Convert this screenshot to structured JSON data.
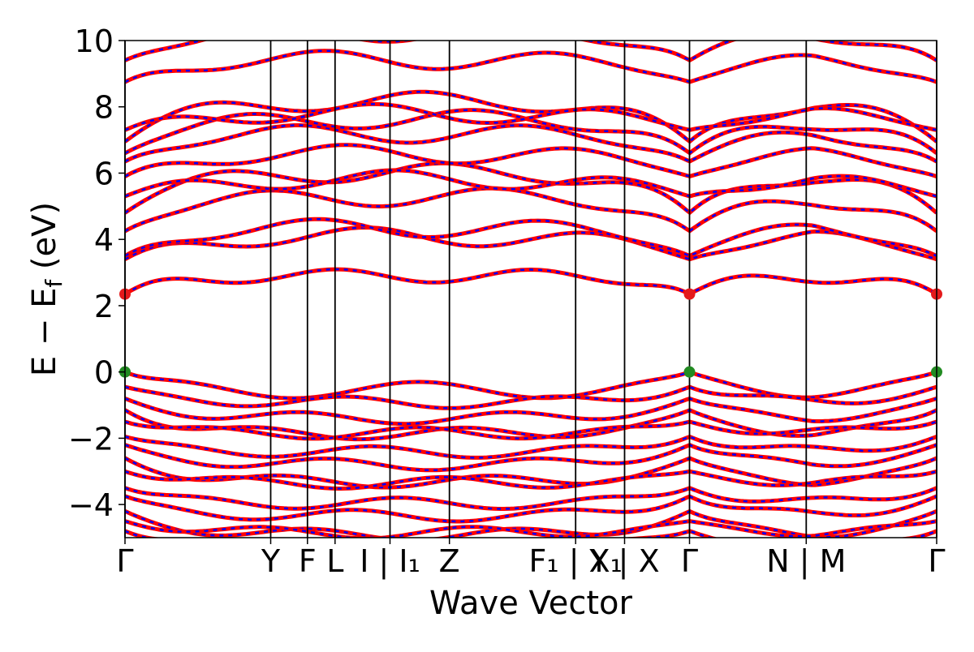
{
  "chart_data": {
    "type": "line",
    "title": "",
    "xlabel": "Wave Vector",
    "ylabel": "E − E_f (eV)",
    "ylabel_parts": {
      "main": "E − E",
      "sub": "f",
      "tail": " (eV)"
    },
    "ylim": [
      -5,
      10
    ],
    "yticks": [
      -4,
      -2,
      0,
      2,
      4,
      6,
      8,
      10
    ],
    "ytick_labels": [
      "−4",
      "−2",
      "0",
      "2",
      "4",
      "6",
      "8",
      "10"
    ],
    "x_range": [
      0,
      1
    ],
    "kpoints": [
      {
        "label": "Γ",
        "x": 0.0
      },
      {
        "label": "Y",
        "x": 0.1795
      },
      {
        "label": "F",
        "x": 0.2248
      },
      {
        "label": "L",
        "x": 0.2588
      },
      {
        "label": "I | I₁",
        "x": 0.3265
      },
      {
        "label": "Z",
        "x": 0.3997
      },
      {
        "label": "F₁ | X₁",
        "x": 0.5552
      },
      {
        "label": "Y | X",
        "x": 0.6155
      },
      {
        "label": "Γ",
        "x": 0.6955
      },
      {
        "label": "N | M",
        "x": 0.8393
      },
      {
        "label": "Γ",
        "x": 1.0
      }
    ],
    "band_edges": [
      {
        "name": "CBM",
        "color": "#e41a1c",
        "points": [
          {
            "x": 0.0,
            "y": 2.35
          },
          {
            "x": 0.6955,
            "y": 2.35
          },
          {
            "x": 1.0,
            "y": 2.35
          }
        ]
      },
      {
        "name": "VBM",
        "color": "#228b22",
        "points": [
          {
            "x": 0.0,
            "y": 0.0
          },
          {
            "x": 0.6955,
            "y": 0.0
          },
          {
            "x": 1.0,
            "y": 0.0
          }
        ]
      }
    ],
    "bands": {
      "conduction_at_gamma": [
        2.35,
        3.4,
        3.5,
        4.25,
        4.8,
        5.3,
        5.9,
        6.35,
        6.6,
        6.95,
        7.3,
        8.75,
        9.4
      ],
      "valence_at_gamma": [
        0.0,
        -0.45,
        -0.8,
        -1.15,
        -1.5,
        -1.95,
        -2.2,
        -2.6,
        -3.0,
        -3.5,
        -3.75,
        -4.2,
        -4.5,
        -4.8
      ]
    },
    "series_style": [
      {
        "color": "#ff0000",
        "style": "solid"
      },
      {
        "color": "#0000ff",
        "style": "dashed"
      }
    ],
    "grid": false
  }
}
